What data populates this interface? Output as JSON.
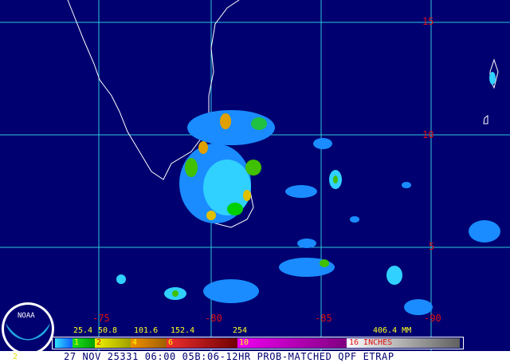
{
  "map": {
    "lon_labels": [
      "-75",
      "-80",
      "-85",
      "-90"
    ],
    "lat_labels": [
      "15",
      "10",
      "5"
    ],
    "grid_color": "#30c8d8",
    "background": "#000070"
  },
  "legend": {
    "mm_labels": [
      "25.4",
      "50.8",
      "101.6",
      "152.4",
      "254",
      "406.4 MM"
    ],
    "inch_labels": [
      "1",
      "2",
      "4",
      "6",
      "10",
      "16 INCHES"
    ]
  },
  "logo": {
    "text": "NOAA"
  },
  "corner_mark": "2",
  "footer": {
    "title": "27 NOV 25331 06:00 05B:06-12HR PROB-MATCHED QPF ETRAP"
  }
}
